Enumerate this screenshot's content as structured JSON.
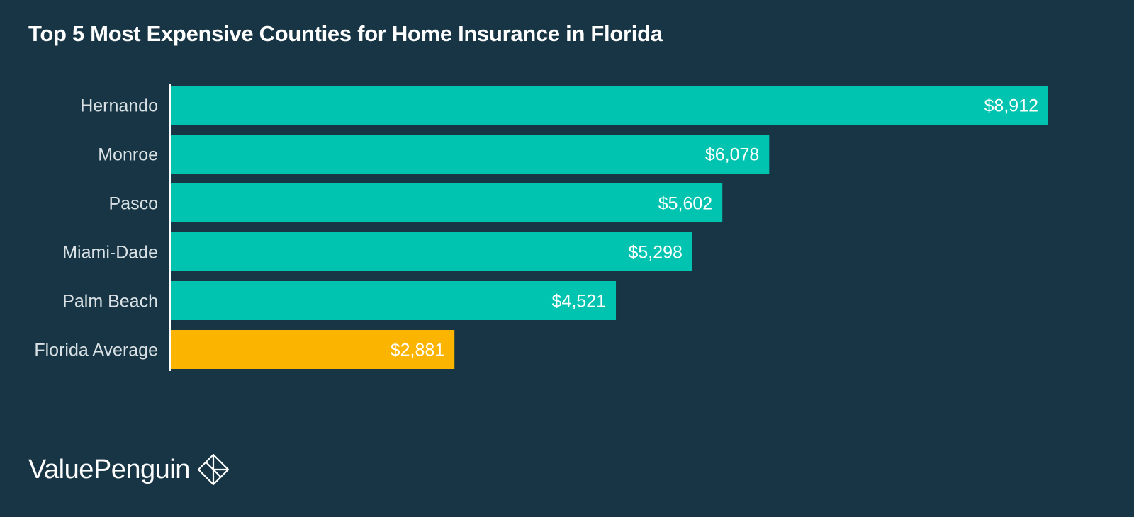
{
  "chart_data": {
    "type": "bar",
    "orientation": "horizontal",
    "title": "Top 5 Most Expensive Counties for Home Insurance in Florida",
    "categories": [
      "Hernando",
      "Monroe",
      "Pasco",
      "Miami-Dade",
      "Palm Beach",
      "Florida Average"
    ],
    "values": [
      8912,
      6078,
      5602,
      5298,
      4521,
      2881
    ],
    "value_labels": [
      "$8,912",
      "$6,078",
      "$5,602",
      "$5,298",
      "$4,521",
      "$2,881"
    ],
    "colors": [
      "#00c4b0",
      "#00c4b0",
      "#00c4b0",
      "#00c4b0",
      "#00c4b0",
      "#fbb400"
    ],
    "xlim": [
      0,
      8912
    ],
    "grid": false,
    "legend": "none"
  },
  "brand": {
    "name": "ValuePenguin",
    "logo_icon": "valuepenguin-diamond-icon"
  },
  "colors": {
    "background": "#173544",
    "bar": "#00c4b0",
    "highlight_bar": "#fbb400",
    "text": "#ffffff",
    "axis": "#ffffff"
  }
}
